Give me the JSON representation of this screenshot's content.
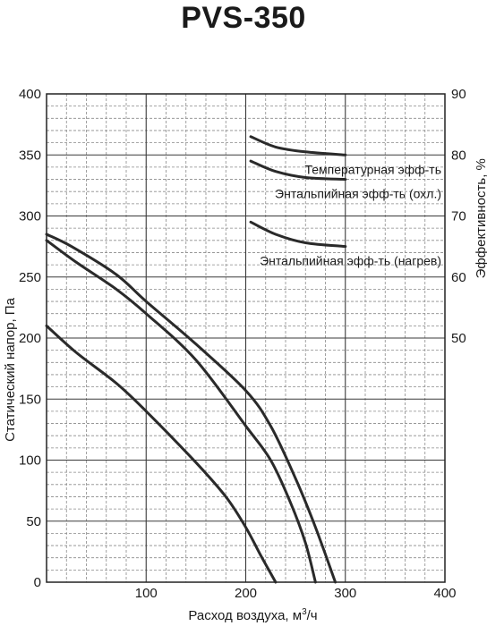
{
  "chart_data": {
    "type": "line",
    "title": "PVS-350",
    "xlabel": "Расход воздуха, м³/ч",
    "xlabel_main": "Расход воздуха, м",
    "xlabel_sup": "3",
    "xlabel_tail": "/ч",
    "ylabel": "Статический напор, Па",
    "y2label": "Эффективность, %",
    "xlim": [
      0,
      400
    ],
    "ylim": [
      0,
      400
    ],
    "y2lim": [
      10,
      90
    ],
    "x_ticks": [
      100,
      200,
      300,
      400
    ],
    "x_tick_labels": [
      "100",
      "200",
      "300",
      "400"
    ],
    "y_ticks": [
      0,
      50,
      100,
      150,
      200,
      250,
      300,
      350,
      400
    ],
    "y_tick_labels": [
      "0",
      "50",
      "100",
      "150",
      "200",
      "250",
      "300",
      "350",
      "400"
    ],
    "y2_ticks": [
      50,
      60,
      70,
      80,
      90
    ],
    "y2_tick_labels": [
      "50",
      "60",
      "70",
      "80",
      "90"
    ],
    "grid": true,
    "pressure_curves": [
      {
        "points": [
          [
            0,
            285
          ],
          [
            25,
            275
          ],
          [
            70,
            252
          ],
          [
            100,
            230
          ],
          [
            150,
            195
          ],
          [
            200,
            157
          ],
          [
            225,
            128
          ],
          [
            250,
            85
          ],
          [
            270,
            45
          ],
          [
            290,
            0
          ]
        ]
      },
      {
        "points": [
          [
            0,
            280
          ],
          [
            30,
            262
          ],
          [
            70,
            240
          ],
          [
            100,
            220
          ],
          [
            150,
            182
          ],
          [
            200,
            128
          ],
          [
            225,
            100
          ],
          [
            245,
            65
          ],
          [
            260,
            32
          ],
          [
            270,
            0
          ]
        ]
      },
      {
        "points": [
          [
            0,
            210
          ],
          [
            30,
            188
          ],
          [
            70,
            163
          ],
          [
            100,
            140
          ],
          [
            150,
            98
          ],
          [
            180,
            70
          ],
          [
            200,
            45
          ],
          [
            215,
            22
          ],
          [
            230,
            0
          ]
        ]
      }
    ],
    "efficiency_curves": [
      {
        "label": "Температурная эфф-ть",
        "points": [
          [
            205,
            83
          ],
          [
            230,
            81.3
          ],
          [
            260,
            80.5
          ],
          [
            300,
            80
          ]
        ]
      },
      {
        "label": "Энтальпийная эфф-ть (охл.)",
        "points": [
          [
            205,
            79
          ],
          [
            230,
            77.3
          ],
          [
            260,
            76.3
          ],
          [
            300,
            76
          ]
        ]
      },
      {
        "label": "Энтальпийная эфф-ть (нагрев)",
        "points": [
          [
            205,
            69
          ],
          [
            230,
            67
          ],
          [
            260,
            65.6
          ],
          [
            300,
            65
          ]
        ]
      }
    ],
    "colors": {
      "curve": "#2a2a2a",
      "axis": "#222222",
      "grid_major": "#3a3a3a",
      "grid_minor": "#8a8a8a"
    }
  }
}
